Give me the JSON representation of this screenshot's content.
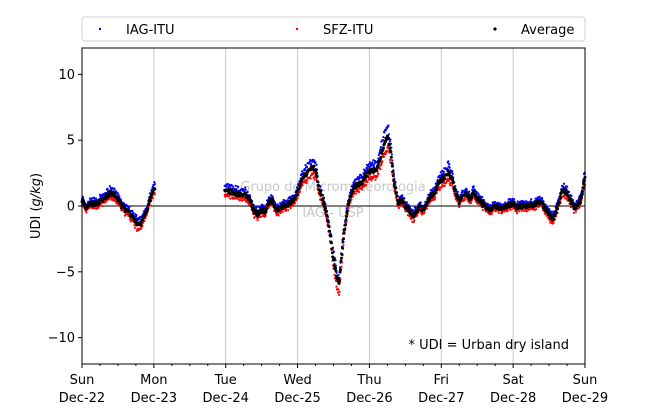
{
  "chart_data": {
    "type": "scatter",
    "title": "",
    "xlabel": "",
    "ylabel_prefix": "UDI (",
    "ylabel_unit": "g/kg",
    "ylabel_suffix": ")",
    "x_unit": "days since Sun Dec-22 00:00",
    "xlim": [
      0,
      7
    ],
    "ylim": [
      -12,
      12
    ],
    "yticks": [
      -10,
      -5,
      0,
      5,
      10
    ],
    "x_ticks": [
      {
        "x": 0,
        "day": "Sun",
        "date": "Dec-22"
      },
      {
        "x": 1,
        "day": "Mon",
        "date": "Dec-23"
      },
      {
        "x": 2,
        "day": "Tue",
        "date": "Dec-24"
      },
      {
        "x": 3,
        "day": "Wed",
        "date": "Dec-25"
      },
      {
        "x": 4,
        "day": "Thu",
        "date": "Dec-26"
      },
      {
        "x": 5,
        "day": "Fri",
        "date": "Dec-27"
      },
      {
        "x": 6,
        "day": "Sat",
        "date": "Dec-28"
      },
      {
        "x": 7,
        "day": "Sun",
        "date": "Dec-29"
      }
    ],
    "grid": "vertical",
    "reference_line_y": 0,
    "legend_position": "top",
    "annotation": "* UDI = Urban dry island",
    "watermark": [
      "Grupo de Micrometeorologia",
      "IAG - USP"
    ],
    "colors": {
      "IAG-ITU": "#0000ff",
      "SFZ-ITU": "#ff0000",
      "Average": "#000000"
    },
    "gaps": [
      [
        1.02,
        1.98
      ]
    ],
    "average_keypoints": [
      [
        0.0,
        0.5
      ],
      [
        0.05,
        -0.3
      ],
      [
        0.1,
        0.1
      ],
      [
        0.2,
        0.2
      ],
      [
        0.3,
        0.5
      ],
      [
        0.4,
        1.0
      ],
      [
        0.45,
        0.8
      ],
      [
        0.5,
        0.5
      ],
      [
        0.55,
        0.0
      ],
      [
        0.6,
        -0.3
      ],
      [
        0.65,
        -0.5
      ],
      [
        0.7,
        -0.8
      ],
      [
        0.75,
        -1.2
      ],
      [
        0.8,
        -1.5
      ],
      [
        0.85,
        -1.0
      ],
      [
        0.9,
        -0.3
      ],
      [
        0.95,
        0.5
      ],
      [
        1.0,
        1.2
      ],
      [
        2.0,
        1.3
      ],
      [
        2.1,
        1.0
      ],
      [
        2.2,
        0.9
      ],
      [
        2.3,
        0.8
      ],
      [
        2.35,
        0.3
      ],
      [
        2.4,
        -0.5
      ],
      [
        2.45,
        -0.6
      ],
      [
        2.5,
        -0.3
      ],
      [
        2.55,
        -0.4
      ],
      [
        2.6,
        0.3
      ],
      [
        2.65,
        0.4
      ],
      [
        2.7,
        -0.3
      ],
      [
        2.8,
        0.0
      ],
      [
        2.9,
        0.2
      ],
      [
        2.95,
        0.5
      ],
      [
        3.0,
        1.0
      ],
      [
        3.05,
        1.8
      ],
      [
        3.1,
        2.3
      ],
      [
        3.15,
        2.6
      ],
      [
        3.2,
        3.0
      ],
      [
        3.25,
        2.8
      ],
      [
        3.3,
        1.2
      ],
      [
        3.35,
        0.5
      ],
      [
        3.4,
        -0.5
      ],
      [
        3.45,
        -2.0
      ],
      [
        3.5,
        -4.0
      ],
      [
        3.55,
        -5.5
      ],
      [
        3.58,
        -5.8
      ],
      [
        3.6,
        -4.5
      ],
      [
        3.65,
        -2.0
      ],
      [
        3.7,
        0.0
      ],
      [
        3.75,
        1.0
      ],
      [
        3.8,
        1.5
      ],
      [
        3.9,
        1.8
      ],
      [
        3.95,
        2.3
      ],
      [
        4.0,
        2.6
      ],
      [
        4.1,
        2.8
      ],
      [
        4.15,
        3.5
      ],
      [
        4.2,
        4.6
      ],
      [
        4.25,
        5.4
      ],
      [
        4.3,
        4.0
      ],
      [
        4.35,
        1.5
      ],
      [
        4.4,
        0.2
      ],
      [
        4.45,
        0.5
      ],
      [
        4.5,
        0.0
      ],
      [
        4.55,
        -0.3
      ],
      [
        4.6,
        -0.8
      ],
      [
        4.65,
        -0.5
      ],
      [
        4.7,
        0.0
      ],
      [
        4.75,
        -0.4
      ],
      [
        4.8,
        0.2
      ],
      [
        4.85,
        0.8
      ],
      [
        4.9,
        1.0
      ],
      [
        4.95,
        1.5
      ],
      [
        5.0,
        2.0
      ],
      [
        5.05,
        2.2
      ],
      [
        5.1,
        2.6
      ],
      [
        5.15,
        2.0
      ],
      [
        5.2,
        1.0
      ],
      [
        5.25,
        0.3
      ],
      [
        5.3,
        0.8
      ],
      [
        5.35,
        1.0
      ],
      [
        5.4,
        0.6
      ],
      [
        5.45,
        1.0
      ],
      [
        5.5,
        0.5
      ],
      [
        5.55,
        0.3
      ],
      [
        5.6,
        0.0
      ],
      [
        5.65,
        -0.3
      ],
      [
        5.7,
        -0.2
      ],
      [
        5.75,
        0.0
      ],
      [
        5.8,
        -0.2
      ],
      [
        5.85,
        -0.1
      ],
      [
        5.9,
        0.0
      ],
      [
        5.95,
        0.1
      ],
      [
        6.0,
        0.2
      ],
      [
        6.05,
        -0.1
      ],
      [
        6.1,
        0.0
      ],
      [
        6.2,
        0.0
      ],
      [
        6.3,
        0.1
      ],
      [
        6.35,
        0.3
      ],
      [
        6.4,
        0.2
      ],
      [
        6.45,
        -0.3
      ],
      [
        6.5,
        -0.6
      ],
      [
        6.55,
        -1.0
      ],
      [
        6.6,
        -0.4
      ],
      [
        6.65,
        0.5
      ],
      [
        6.7,
        1.3
      ],
      [
        6.75,
        0.9
      ],
      [
        6.8,
        0.4
      ],
      [
        6.85,
        -0.1
      ],
      [
        6.9,
        0.0
      ],
      [
        6.95,
        0.6
      ],
      [
        7.0,
        2.2
      ]
    ],
    "series": [
      {
        "name": "IAG-ITU"
      },
      {
        "name": "SFZ-ITU"
      },
      {
        "name": "Average"
      }
    ]
  }
}
